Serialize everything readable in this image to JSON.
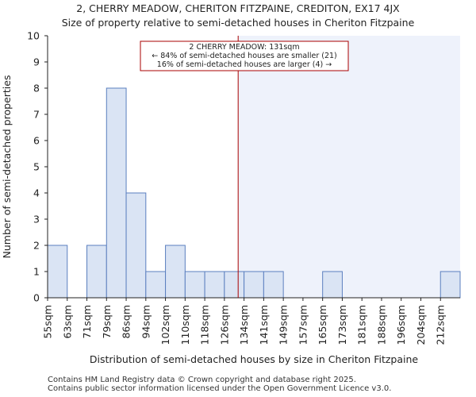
{
  "chart_data": {
    "type": "bar",
    "title": "2, CHERRY MEADOW, CHERITON FITZPAINE, CREDITON, EX17 4JX",
    "subtitle": "Size of property relative to semi-detached houses in Cheriton Fitzpaine",
    "xlabel": "Distribution of semi-detached houses by size in Cheriton Fitzpaine",
    "ylabel": "Number of semi-detached properties",
    "categories": [
      "55sqm",
      "63sqm",
      "71sqm",
      "79sqm",
      "86sqm",
      "94sqm",
      "102sqm",
      "110sqm",
      "118sqm",
      "126sqm",
      "134sqm",
      "141sqm",
      "149sqm",
      "157sqm",
      "165sqm",
      "173sqm",
      "181sqm",
      "188sqm",
      "196sqm",
      "204sqm",
      "212sqm"
    ],
    "values": [
      2,
      0,
      2,
      8,
      4,
      1,
      2,
      1,
      1,
      1,
      1,
      1,
      0,
      0,
      1,
      0,
      0,
      0,
      0,
      0,
      1
    ],
    "ylim": [
      0,
      10
    ],
    "yticks": [
      0,
      1,
      2,
      3,
      4,
      5,
      6,
      7,
      8,
      9,
      10
    ],
    "marker_value_index": 9.7,
    "annotation": {
      "line1": "2 CHERRY MEADOW: 131sqm",
      "line2": "← 84% of semi-detached houses are smaller (21)",
      "line3": "16% of semi-detached houses are larger (4) →"
    },
    "colors": {
      "bar_fill": "#dae4f4",
      "bar_edge": "#5b7fbf",
      "marker_line": "#aa0000",
      "highlight_bg": "#eef2fb",
      "axis": "#222222"
    }
  },
  "footer": {
    "line1": "Contains HM Land Registry data © Crown copyright and database right 2025.",
    "line2": "Contains public sector information licensed under the Open Government Licence v3.0."
  }
}
